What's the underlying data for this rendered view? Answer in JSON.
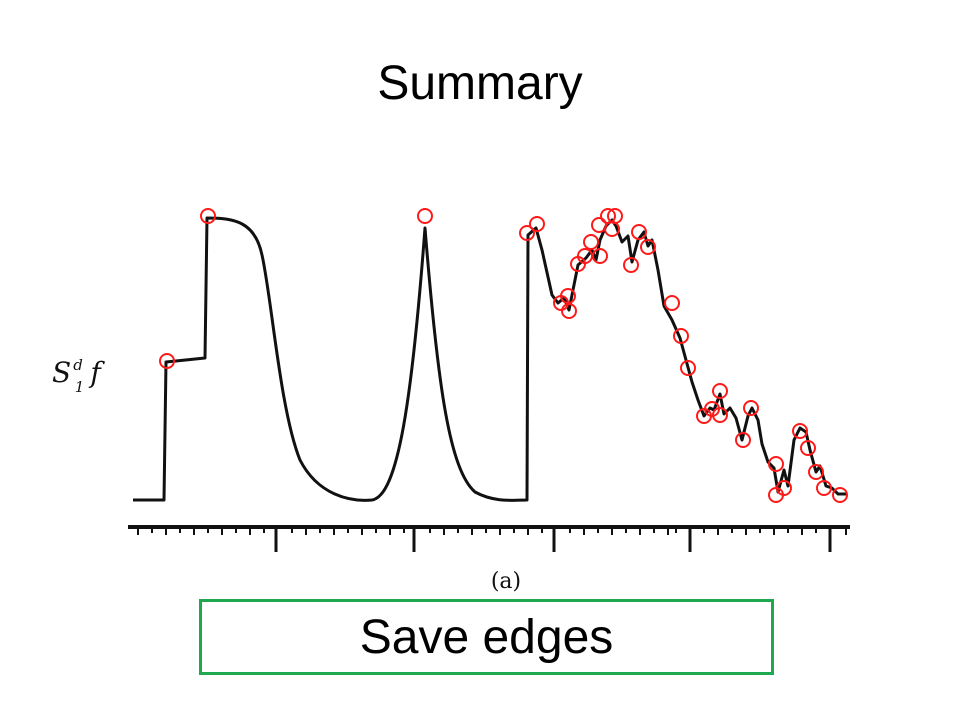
{
  "slide": {
    "title": "Summary",
    "callout_text": "Save edges"
  },
  "figure": {
    "y_label_main": "S",
    "y_label_sup": "d",
    "y_label_sub": "1",
    "y_label_tail": "f",
    "caption": "(a)",
    "marker_color": "#ff1a1a",
    "curve_color": "#111111",
    "callout_border_color": "#1fa84f"
  }
}
